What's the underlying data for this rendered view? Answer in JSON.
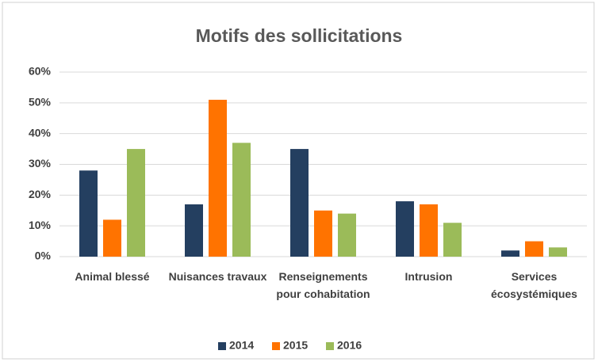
{
  "chart_data": {
    "type": "bar",
    "title": "Motifs des sollicitations",
    "categories": [
      "Animal blessé",
      "Nuisances travaux",
      "Renseignements pour cohabitation",
      "Intrusion",
      "Services écosystémiques"
    ],
    "series": [
      {
        "name": "2014",
        "color": "#243f60",
        "values": [
          28,
          17,
          35,
          18,
          2
        ]
      },
      {
        "name": "2015",
        "color": "#ff7300",
        "values": [
          12,
          51,
          15,
          17,
          5
        ]
      },
      {
        "name": "2016",
        "color": "#9bbb59",
        "values": [
          35,
          37,
          14,
          11,
          3
        ]
      }
    ],
    "ylim": [
      0,
      60
    ],
    "yticks": [
      {
        "value": 0,
        "label": "0%"
      },
      {
        "value": 10,
        "label": "10%"
      },
      {
        "value": 20,
        "label": "20%"
      },
      {
        "value": 30,
        "label": "30%"
      },
      {
        "value": 40,
        "label": "40%"
      },
      {
        "value": 50,
        "label": "50%"
      },
      {
        "value": 60,
        "label": "60%"
      }
    ],
    "grid": true,
    "legend": "bottom"
  }
}
